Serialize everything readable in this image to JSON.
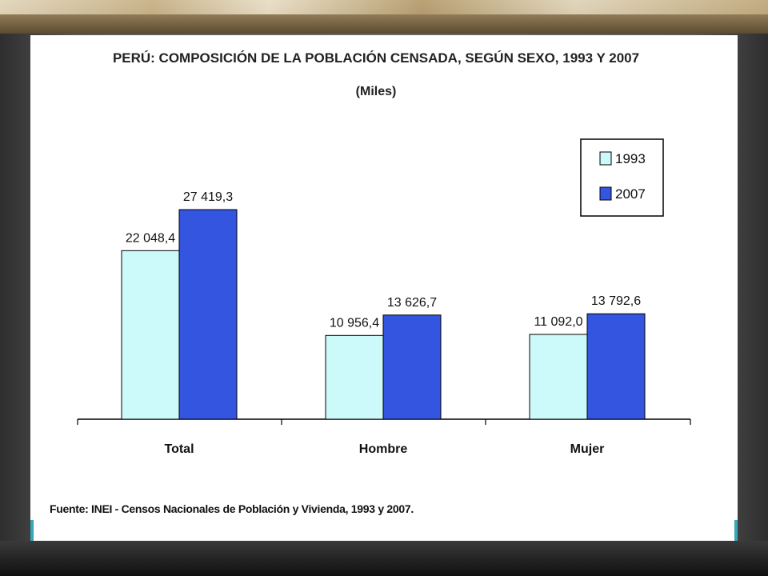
{
  "chart_data": {
    "type": "bar",
    "title": "PERÚ: COMPOSICIÓN DE LA POBLACIÓN CENSADA, SEGÚN SEXO, 1993 Y 2007",
    "subtitle": "(Miles)",
    "categories": [
      "Total",
      "Hombre",
      "Mujer"
    ],
    "series": [
      {
        "name": "1993",
        "color": "#ccfafa",
        "values": [
          22048.4,
          10956.4,
          11092.0
        ],
        "labels": [
          "22 048,4",
          "10 956,4",
          "11 092,0"
        ]
      },
      {
        "name": "2007",
        "color": "#3355e0",
        "values": [
          27419.3,
          13626.7,
          13792.6
        ],
        "labels": [
          "27 419,3",
          "13 626,7",
          "13 792,6"
        ]
      }
    ],
    "ylim": [
      0,
      30000
    ],
    "grid": false,
    "legend": "top-right"
  },
  "source": "Fuente: INEI - Censos Nacionales de Población y Vivienda, 1993 y 2007."
}
